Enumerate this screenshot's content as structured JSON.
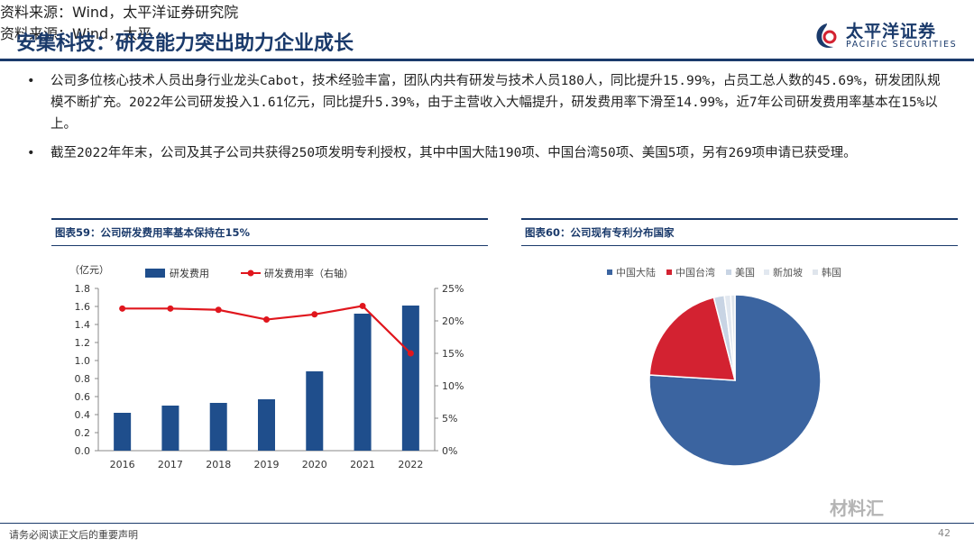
{
  "header": {
    "title": "安集科技：研发能力突出助力企业成长",
    "logo_cn": "太平洋证券",
    "logo_en": "PACIFIC SECURITIES"
  },
  "bullets": [
    "公司多位核心技术人员出身行业龙头Cabot，技术经验丰富，团队内共有研发与技术人员180人，同比提升15.99%，占员工总人数的45.69%，研发团队规模不断扩充。2022年公司研发投入1.61亿元，同比提升5.39%，由于主营收入大幅提升，研发费用率下滑至14.99%，近7年公司研发费用率基本在15%以上。",
    "截至2022年年末，公司及其子公司共获得250项发明专利授权，其中中国大陆190项、中国台湾50项、美国5项，另有269项申请已获受理。"
  ],
  "left_panel": {
    "header": "图表59：公司研发费用率基本保持在15%",
    "source": "资料来源：Wind，太平洋证券研究院",
    "unit": "（亿元）"
  },
  "right_panel": {
    "header": "图表60：公司现有专利分布国家",
    "source": "资料来源：Wind，太平"
  },
  "footer": {
    "disclaimer": "请务必阅读正文后的重要声明",
    "page": "42"
  },
  "watermark": "材料汇",
  "chart_data": [
    {
      "type": "bar",
      "categories": [
        "2016",
        "2017",
        "2018",
        "2019",
        "2020",
        "2021",
        "2022"
      ],
      "series": [
        {
          "name": "研发费用",
          "type": "bar",
          "axis": "left",
          "color": "#1f4e8c",
          "values": [
            0.42,
            0.5,
            0.53,
            0.57,
            0.88,
            1.52,
            1.61
          ]
        },
        {
          "name": "研发费用率（右轴）",
          "type": "line",
          "axis": "right",
          "color": "#e0161d",
          "values": [
            21.9,
            21.9,
            21.7,
            20.2,
            21.0,
            22.3,
            15.0
          ]
        }
      ],
      "ylim": [
        0,
        1.8
      ],
      "yticks": [
        "0.0",
        "0.2",
        "0.4",
        "0.6",
        "0.8",
        "1.0",
        "1.2",
        "1.4",
        "1.6",
        "1.8"
      ],
      "y2lim": [
        0,
        25
      ],
      "y2ticks": [
        "0%",
        "5%",
        "10%",
        "15%",
        "20%",
        "25%"
      ],
      "legend": "top"
    },
    {
      "type": "pie",
      "labels": [
        "中国大陆",
        "中国台湾",
        "美国",
        "新加坡",
        "韩国"
      ],
      "values": [
        190,
        50,
        5,
        3,
        2
      ],
      "colors": [
        "#3b64a0",
        "#d32231",
        "#c8d4e4",
        "#e2e8f0",
        "#dfe5ec"
      ],
      "legend": "top"
    }
  ]
}
